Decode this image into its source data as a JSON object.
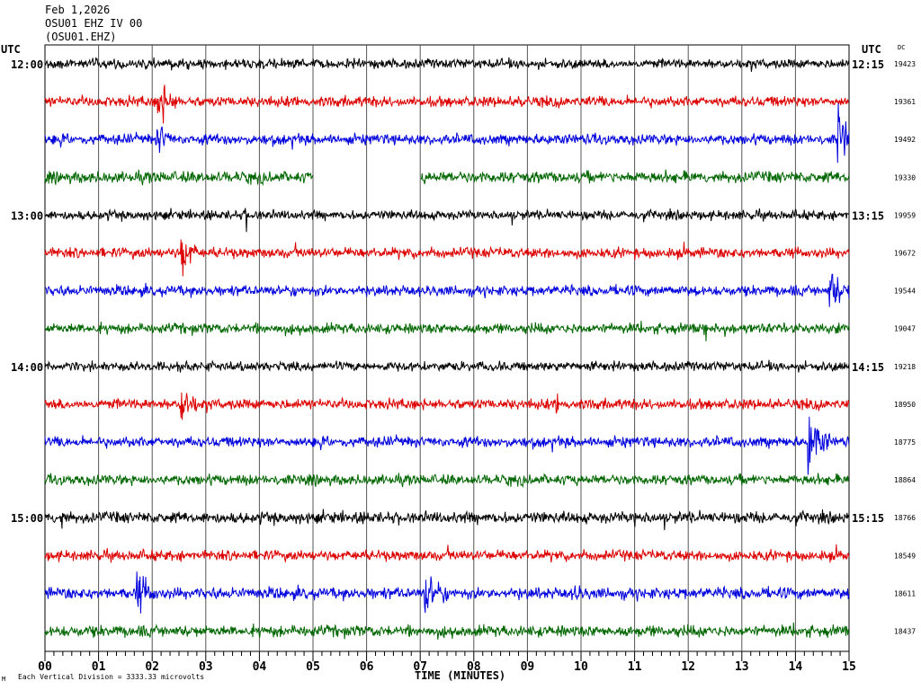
{
  "header": {
    "date": "Feb 1,2026",
    "channel": "OSU01 EHZ IV 00",
    "station_code": "(OSU01.EHZ)"
  },
  "labels": {
    "left_utc": "UTC",
    "right_utc": "UTC",
    "dc": "DC",
    "x_axis_title": "TIME (MINUTES)",
    "footnote": "Each Vertical Division = 3333.33 microvolts"
  },
  "colors": {
    "black": "#000000",
    "red": "#dd0000",
    "blue": "#0000dd",
    "green": "#006600",
    "grid": "#000000"
  },
  "chart_data": {
    "type": "line",
    "title": "",
    "xlabel": "TIME (MINUTES)",
    "ylabel": "",
    "x_ticks": [
      "00",
      "01",
      "02",
      "03",
      "04",
      "05",
      "06",
      "07",
      "08",
      "09",
      "10",
      "11",
      "12",
      "13",
      "14",
      "15"
    ],
    "xlim": [
      0,
      15
    ],
    "grid": true,
    "hour_labels_left": [
      "12:00",
      "13:00",
      "14:00",
      "15:00"
    ],
    "hour_labels_right": [
      "12:15",
      "13:15",
      "14:15",
      "15:15"
    ],
    "series": [
      {
        "index": 0,
        "color": "black",
        "dc": "19423",
        "noise": 0.45,
        "gaps": [],
        "events": [
          {
            "at": 4.65,
            "amp": 0.9,
            "dur": 0.05
          }
        ]
      },
      {
        "index": 1,
        "color": "red",
        "dc": "19361",
        "noise": 0.5,
        "gaps": [],
        "events": [
          {
            "at": 2.12,
            "amp": 2.4,
            "dur": 0.35
          },
          {
            "at": 8.9,
            "amp": 1.1,
            "dur": 0.06
          }
        ]
      },
      {
        "index": 2,
        "color": "blue",
        "dc": "19492",
        "noise": 0.5,
        "gaps": [],
        "events": [
          {
            "at": 2.1,
            "amp": 1.8,
            "dur": 0.25
          },
          {
            "at": 14.8,
            "amp": 3.0,
            "dur": 0.4
          }
        ]
      },
      {
        "index": 3,
        "color": "green",
        "dc": "19330",
        "noise": 0.55,
        "gaps": [
          [
            5.0,
            7.0
          ]
        ],
        "events": []
      },
      {
        "index": 4,
        "color": "black",
        "dc": "19959",
        "noise": 0.45,
        "gaps": [],
        "events": [
          {
            "at": 3.75,
            "amp": 1.0,
            "dur": 0.06
          }
        ]
      },
      {
        "index": 5,
        "color": "red",
        "dc": "19672",
        "noise": 0.5,
        "gaps": [],
        "events": [
          {
            "at": 2.55,
            "amp": 2.4,
            "dur": 0.3
          }
        ]
      },
      {
        "index": 6,
        "color": "blue",
        "dc": "19544",
        "noise": 0.5,
        "gaps": [],
        "events": [
          {
            "at": 14.65,
            "amp": 2.2,
            "dur": 0.35
          }
        ]
      },
      {
        "index": 7,
        "color": "green",
        "dc": "19047",
        "noise": 0.5,
        "gaps": [],
        "events": []
      },
      {
        "index": 8,
        "color": "black",
        "dc": "19218",
        "noise": 0.45,
        "gaps": [],
        "events": []
      },
      {
        "index": 9,
        "color": "red",
        "dc": "18950",
        "noise": 0.5,
        "gaps": [],
        "events": [
          {
            "at": 2.55,
            "amp": 2.4,
            "dur": 0.3
          },
          {
            "at": 9.55,
            "amp": 0.9,
            "dur": 0.05
          }
        ]
      },
      {
        "index": 10,
        "color": "blue",
        "dc": "18775",
        "noise": 0.5,
        "gaps": [],
        "events": [
          {
            "at": 14.25,
            "amp": 3.0,
            "dur": 0.4
          }
        ]
      },
      {
        "index": 11,
        "color": "green",
        "dc": "18864",
        "noise": 0.5,
        "gaps": [],
        "events": []
      },
      {
        "index": 12,
        "color": "black",
        "dc": "18766",
        "noise": 0.55,
        "gaps": [],
        "events": [
          {
            "at": 0.3,
            "amp": 1.1,
            "dur": 0.1
          },
          {
            "at": 11.0,
            "amp": 0.9,
            "dur": 0.05
          }
        ]
      },
      {
        "index": 13,
        "color": "red",
        "dc": "18549",
        "noise": 0.5,
        "gaps": [],
        "events": []
      },
      {
        "index": 14,
        "color": "blue",
        "dc": "18611",
        "noise": 0.55,
        "gaps": [],
        "events": [
          {
            "at": 1.7,
            "amp": 2.0,
            "dur": 0.4
          },
          {
            "at": 7.1,
            "amp": 2.1,
            "dur": 0.4
          },
          {
            "at": 9.9,
            "amp": 1.0,
            "dur": 0.1
          }
        ]
      },
      {
        "index": 15,
        "color": "green",
        "dc": "18437",
        "noise": 0.55,
        "gaps": [],
        "events": []
      }
    ]
  }
}
